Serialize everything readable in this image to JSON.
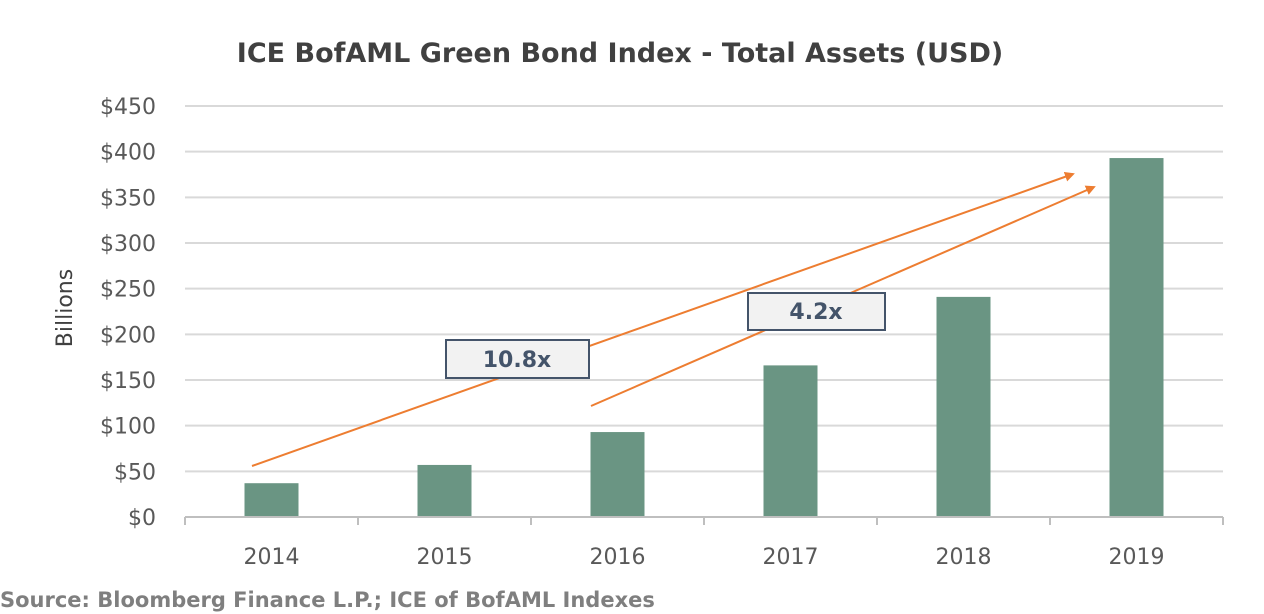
{
  "chart_data": {
    "type": "bar",
    "title": "ICE BofAML Green Bond Index - Total Assets (USD)",
    "xlabel": "",
    "ylabel": "Billions",
    "categories": [
      "2014",
      "2015",
      "2016",
      "2017",
      "2018",
      "2019"
    ],
    "values": [
      37,
      57,
      93,
      166,
      241,
      393
    ],
    "ylim": [
      0,
      450
    ],
    "y_ticks": [
      0,
      50,
      100,
      150,
      200,
      250,
      300,
      350,
      400,
      450
    ],
    "y_tick_labels": [
      "$0",
      "$50",
      "$100",
      "$150",
      "$200",
      "$250",
      "$300",
      "$350",
      "$400",
      "$450"
    ],
    "grid": true,
    "bar_color": "#6a9583",
    "annotations": [
      {
        "label": "10.8x",
        "from": "2014",
        "to": "2019",
        "color": "#ed7d31"
      },
      {
        "label": "4.2x",
        "from": "2016",
        "to": "2019",
        "color": "#ed7d31"
      }
    ]
  },
  "source": "Source: Bloomberg Finance L.P.; ICE of BofAML Indexes"
}
